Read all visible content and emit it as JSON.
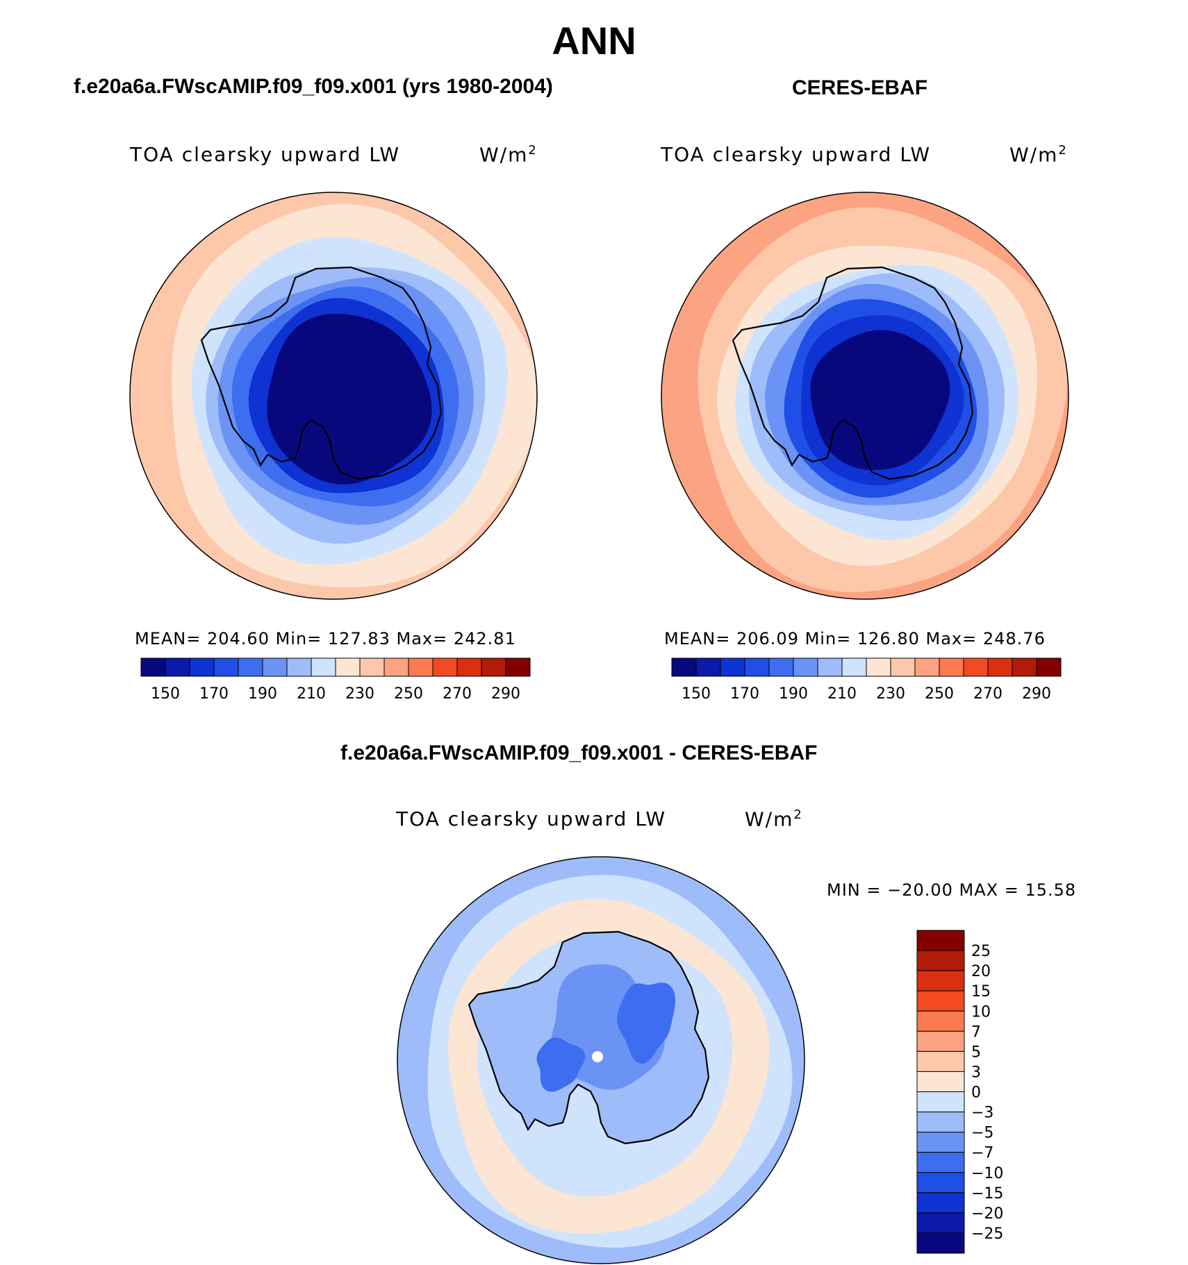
{
  "figure_title": "ANN",
  "panels": [
    {
      "title": "f.e20a6a.FWscAMIP.f09_f09.x001 (yrs 1980-2004)",
      "variable": "TOA clearsky upward LW",
      "units_base": "W/m",
      "units_exp": "2",
      "stats": "MEAN= 204.60   Min= 127.83   Max= 242.81"
    },
    {
      "title": "CERES-EBAF",
      "variable": "TOA clearsky upward LW",
      "units_base": "W/m",
      "units_exp": "2",
      "stats": "MEAN= 206.09   Min= 126.80   Max= 248.76"
    },
    {
      "title": "f.e20a6a.FWscAMIP.f09_f09.x001 - CERES-EBAF",
      "variable": "TOA clearsky upward LW",
      "units_base": "W/m",
      "units_exp": "2",
      "stats": "MIN = −20.00 MAX =  15.58"
    }
  ],
  "chart_data": [
    {
      "type": "heatmap",
      "projection": "south-polar-stereographic",
      "title": "f.e20a6a.FWscAMIP.f09_f09.x001 (yrs 1980-2004)",
      "variable": "TOA clearsky upward LW",
      "units": "W/m2",
      "mean": 204.6,
      "min": 127.83,
      "max": 242.81,
      "colorbar_ticks": [
        150,
        170,
        190,
        210,
        230,
        250,
        270,
        290
      ],
      "levels": [
        140,
        150,
        160,
        170,
        180,
        190,
        200,
        210,
        220,
        230,
        240,
        250,
        260,
        270,
        280,
        290,
        300
      ],
      "bands_ring_values": [
        145,
        165,
        180,
        190,
        200,
        210,
        225,
        235
      ],
      "colorbar_orientation": "horizontal"
    },
    {
      "type": "heatmap",
      "projection": "south-polar-stereographic",
      "title": "CERES-EBAF",
      "variable": "TOA clearsky upward LW",
      "units": "W/m2",
      "mean": 206.09,
      "min": 126.8,
      "max": 248.76,
      "colorbar_ticks": [
        150,
        170,
        190,
        210,
        230,
        250,
        270,
        290
      ],
      "levels": [
        140,
        150,
        160,
        170,
        180,
        190,
        200,
        210,
        220,
        230,
        240,
        250,
        260,
        270,
        280,
        290,
        300
      ],
      "bands_ring_values": [
        135,
        160,
        175,
        190,
        200,
        210,
        225,
        235,
        245
      ],
      "colorbar_orientation": "horizontal"
    },
    {
      "type": "heatmap",
      "projection": "south-polar-stereographic",
      "title": "f.e20a6a.FWscAMIP.f09_f09.x001 - CERES-EBAF",
      "variable": "TOA clearsky upward LW",
      "units": "W/m2",
      "min": -20.0,
      "max": 15.58,
      "colorbar_ticks": [
        "25",
        "20",
        "15",
        "10",
        "7",
        "5",
        "3",
        "0",
        "−3",
        "−5",
        "−7",
        "−10",
        "−15",
        "−20",
        "−25"
      ],
      "colorbar_orientation": "vertical"
    }
  ],
  "colors": {
    "abs_scale": [
      "#08087e",
      "#0b1aa8",
      "#0f32d2",
      "#1f4fe6",
      "#3d6ef0",
      "#6b93f5",
      "#9dbcf9",
      "#cfe3fd",
      "#fde5d4",
      "#fdc7aa",
      "#fca381",
      "#fb7a4f",
      "#f34a22",
      "#d9300f",
      "#b11b07",
      "#840000"
    ],
    "diff_scale": [
      "#840000",
      "#b11b07",
      "#d9300f",
      "#f34a22",
      "#fb7a4f",
      "#fca381",
      "#fdc7aa",
      "#fde5d4",
      "#cfe3fd",
      "#9dbcf9",
      "#6b93f5",
      "#3d6ef0",
      "#1f4fe6",
      "#0f32d2",
      "#0b1aa8",
      "#08087e"
    ],
    "coastline": "#000000",
    "map_border": "#000000"
  }
}
